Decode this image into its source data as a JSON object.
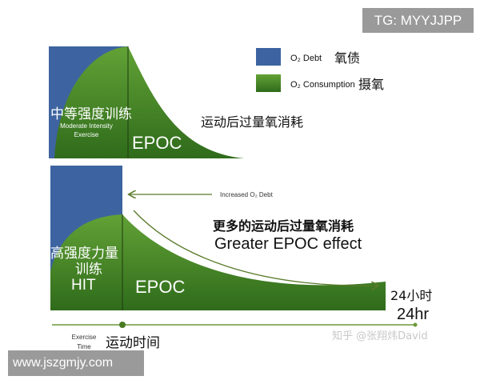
{
  "watermarks": {
    "top_right": "TG: MYYJJPP",
    "bottom_left": "www.jszgmjy.com",
    "zhihu": "知乎 @张翔炜David"
  },
  "legend": {
    "debt": {
      "label": "O₂ Debt",
      "label_cn": "氧债",
      "color": "#3d64a0"
    },
    "consumption": {
      "label": "O₂ Consumption",
      "label_cn": "摄氧",
      "color": "#4a8a28"
    }
  },
  "top_panel": {
    "exercise_cn": "中等强度训练",
    "exercise_en_1": "Moderate Intensity",
    "exercise_en_2": "Exercise",
    "epoc": "EPOC",
    "epoc_cn": "运动后过量氧消耗"
  },
  "bottom_panel": {
    "exercise_cn_1": "高强度力量",
    "exercise_cn_2": "训练",
    "exercise_en": "HIT",
    "epoc": "EPOC",
    "increased_debt": "Increased O₂ Debt",
    "greater_cn": "更多的运动后过量氧消耗",
    "greater_en": "Greater EPOC effect",
    "end_cn": "24小时",
    "end_en": "24hr"
  },
  "timeline": {
    "label_en_1": "Exercise",
    "label_en_2": "Time",
    "label_cn": "运动时间"
  }
}
